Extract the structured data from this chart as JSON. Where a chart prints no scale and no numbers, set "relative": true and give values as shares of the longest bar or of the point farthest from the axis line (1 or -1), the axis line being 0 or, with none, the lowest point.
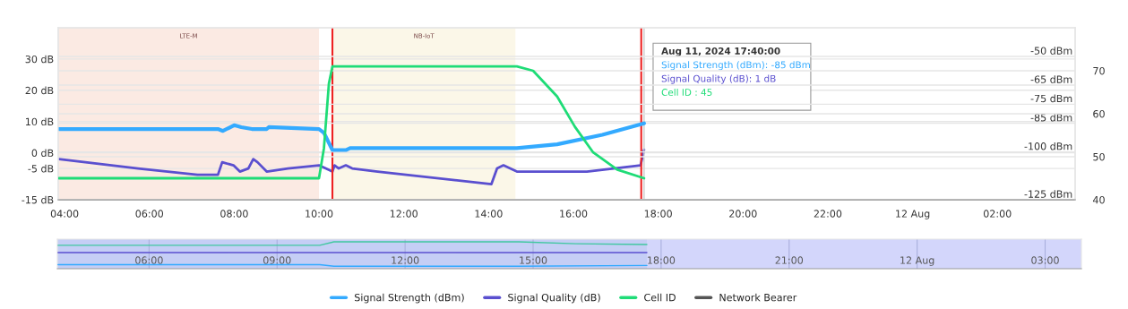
{
  "chart_data": [
    {
      "type": "line",
      "xlim": [
        "2024-08-11T03:51",
        "2024-08-12T03:50"
      ],
      "xticks": [
        {
          "value": "2024-08-11T04:00",
          "label": "04:00"
        },
        {
          "value": "2024-08-11T06:00",
          "label": "06:00"
        },
        {
          "value": "2024-08-11T08:00",
          "label": "08:00"
        },
        {
          "value": "2024-08-11T10:00",
          "label": "10:00"
        },
        {
          "value": "2024-08-11T12:00",
          "label": "12:00"
        },
        {
          "value": "2024-08-11T14:00",
          "label": "14:00"
        },
        {
          "value": "2024-08-11T16:00",
          "label": "16:00"
        },
        {
          "value": "2024-08-11T18:00",
          "label": "18:00"
        },
        {
          "value": "2024-08-11T20:00",
          "label": "20:00"
        },
        {
          "value": "2024-08-11T22:00",
          "label": "22:00"
        },
        {
          "value": "2024-08-12T00:00",
          "label": "12 Aug"
        },
        {
          "value": "2024-08-12T02:00",
          "label": "02:00"
        }
      ],
      "ylim": [
        -15,
        40
      ],
      "yticks": [
        {
          "value": 30,
          "label": "30 dB"
        },
        {
          "value": 20,
          "label": "20 dB"
        },
        {
          "value": 10,
          "label": "10 dB"
        },
        {
          "value": 0,
          "label": "0 dB"
        },
        {
          "value": -5,
          "label": "-5 dB"
        },
        {
          "value": -15,
          "label": "-15 dB"
        }
      ],
      "y2lim": [
        -125,
        -35
      ],
      "y2ticks": [
        {
          "value": -50,
          "label": "-50 dBm"
        },
        {
          "value": -65,
          "label": "-65 dBm"
        },
        {
          "value": -75,
          "label": "-75 dBm"
        },
        {
          "value": -85,
          "label": "-85 dBm"
        },
        {
          "value": -100,
          "label": "-100 dBm"
        },
        {
          "value": -125,
          "label": "-125 dBm"
        }
      ],
      "y3lim": [
        40,
        80
      ],
      "y3ticks": [
        40,
        50,
        60,
        70
      ],
      "grid": "y",
      "legend": "bottom",
      "marker": "none",
      "line_style": "solid",
      "series": [
        {
          "name": "Signal Strength (dBm)",
          "color": "#33aaff",
          "axis": "y2",
          "x": [
            "2024-08-11T03:52",
            "2024-08-11T07:37",
            "2024-08-11T07:44",
            "2024-08-11T08:00",
            "2024-08-11T08:10",
            "2024-08-11T08:25",
            "2024-08-11T08:46",
            "2024-08-11T08:49",
            "2024-08-11T10:00",
            "2024-08-11T10:07",
            "2024-08-11T10:19",
            "2024-08-11T10:38",
            "2024-08-11T10:44",
            "2024-08-11T14:40",
            "2024-08-11T15:37",
            "2024-08-11T16:41",
            "2024-08-11T17:40"
          ],
          "values": [
            -88,
            -88,
            -89,
            -86,
            -87,
            -88,
            -88,
            -87,
            -88,
            -90,
            -99,
            -99,
            -98,
            -98,
            -96,
            -91,
            -85
          ]
        },
        {
          "name": "Signal Quality (dB)",
          "color": "#5a4fcf",
          "axis": "y",
          "x": [
            "2024-08-11T03:52",
            "2024-08-11T05:44",
            "2024-08-11T07:08",
            "2024-08-11T07:37",
            "2024-08-11T07:43",
            "2024-08-11T07:59",
            "2024-08-11T08:08",
            "2024-08-11T08:20",
            "2024-08-11T08:27",
            "2024-08-11T08:33",
            "2024-08-11T08:46",
            "2024-08-11T09:16",
            "2024-08-11T10:00",
            "2024-08-11T10:19",
            "2024-08-11T10:22",
            "2024-08-11T10:28",
            "2024-08-11T10:38",
            "2024-08-11T10:47",
            "2024-08-11T11:23",
            "2024-08-11T14:04",
            "2024-08-11T14:12",
            "2024-08-11T14:21",
            "2024-08-11T14:40",
            "2024-08-11T16:19",
            "2024-08-11T17:35",
            "2024-08-11T17:40"
          ],
          "values": [
            -2,
            -5,
            -7,
            -7,
            -3,
            -4,
            -6,
            -5,
            -2,
            -3,
            -6,
            -5,
            -4,
            -6,
            -4,
            -5,
            -4,
            -5,
            -6,
            -10,
            -5,
            -4,
            -6,
            -6,
            -4,
            1
          ]
        },
        {
          "name": "Cell ID",
          "color": "#1fdc77",
          "axis": "y3",
          "x": [
            "2024-08-11T03:52",
            "2024-08-11T10:00",
            "2024-08-11T10:07",
            "2024-08-11T10:14",
            "2024-08-11T10:19",
            "2024-08-11T14:40",
            "2024-08-11T15:03",
            "2024-08-11T15:37",
            "2024-08-11T16:02",
            "2024-08-11T16:28",
            "2024-08-11T17:02",
            "2024-08-11T17:40"
          ],
          "values": [
            45,
            45,
            52,
            67,
            71,
            71,
            70,
            64,
            57,
            51,
            47,
            45
          ]
        },
        {
          "name": "Network Bearer",
          "color": "#555555",
          "axis": "y"
        }
      ],
      "bands": [
        {
          "axis": "x",
          "from": "2024-08-11T03:51",
          "to": "2024-08-11T10:00",
          "label": "LTE-M",
          "color": "#fbeae3"
        },
        {
          "axis": "x",
          "from": "2024-08-11T10:19",
          "to": "2024-08-11T14:38",
          "label": "NB-IoT",
          "color": "#fbf7e8"
        }
      ],
      "ref_lines": [
        {
          "axis": "x",
          "value": "2024-08-11T10:19",
          "color": "#ee2222"
        },
        {
          "axis": "x",
          "value": "2024-08-11T17:36",
          "color": "#ee2222"
        },
        {
          "axis": "x",
          "value": "2024-08-11T17:40",
          "color": "#cccccc"
        }
      ],
      "annotations": [
        "Aug 11, 2024 17:40:00",
        "Signal Strength (dBm): -85 dBm",
        "Signal Quality (dB): 1 dB",
        "Cell ID : 45"
      ]
    },
    {
      "type": "line",
      "relative": true,
      "tick_labels": "x",
      "xlim": [
        "2024-08-11T03:51",
        "2024-08-12T03:51"
      ],
      "xticks": [
        {
          "value": "2024-08-11T06:00",
          "label": "06:00"
        },
        {
          "value": "2024-08-11T09:00",
          "label": "09:00"
        },
        {
          "value": "2024-08-11T12:00",
          "label": "12:00"
        },
        {
          "value": "2024-08-11T15:00",
          "label": "15:00"
        },
        {
          "value": "2024-08-11T18:00",
          "label": "18:00"
        },
        {
          "value": "2024-08-11T21:00",
          "label": "21:00"
        },
        {
          "value": "2024-08-12T00:00",
          "label": "12 Aug"
        },
        {
          "value": "2024-08-12T03:00",
          "label": "03:00"
        }
      ],
      "grid": "x",
      "bands": [
        {
          "axis": "x",
          "from": "2024-08-11T03:51",
          "to": "2024-08-11T17:40",
          "color": "#c5cef5"
        },
        {
          "axis": "x",
          "from": "2024-08-11T17:40",
          "to": "2024-08-12T03:51",
          "color": "#d3d6fb"
        }
      ],
      "series": [
        {
          "color": "#33aaff",
          "x": [
            "2024-08-11T03:52",
            "2024-08-11T10:00",
            "2024-08-11T10:20",
            "2024-08-11T14:40",
            "2024-08-11T17:40"
          ],
          "values": [
            0.15,
            0.15,
            0.09,
            0.09,
            0.12
          ]
        },
        {
          "color": "#5a4fcf",
          "x": [
            "2024-08-11T03:52",
            "2024-08-11T17:40"
          ],
          "values": [
            0.6,
            0.6
          ]
        },
        {
          "color": "#40c8a0",
          "x": [
            "2024-08-11T03:52",
            "2024-08-11T10:00",
            "2024-08-11T10:20",
            "2024-08-11T14:40",
            "2024-08-11T16:00",
            "2024-08-11T17:40"
          ],
          "values": [
            0.87,
            0.87,
            1,
            1,
            0.93,
            0.9
          ]
        }
      ]
    }
  ]
}
